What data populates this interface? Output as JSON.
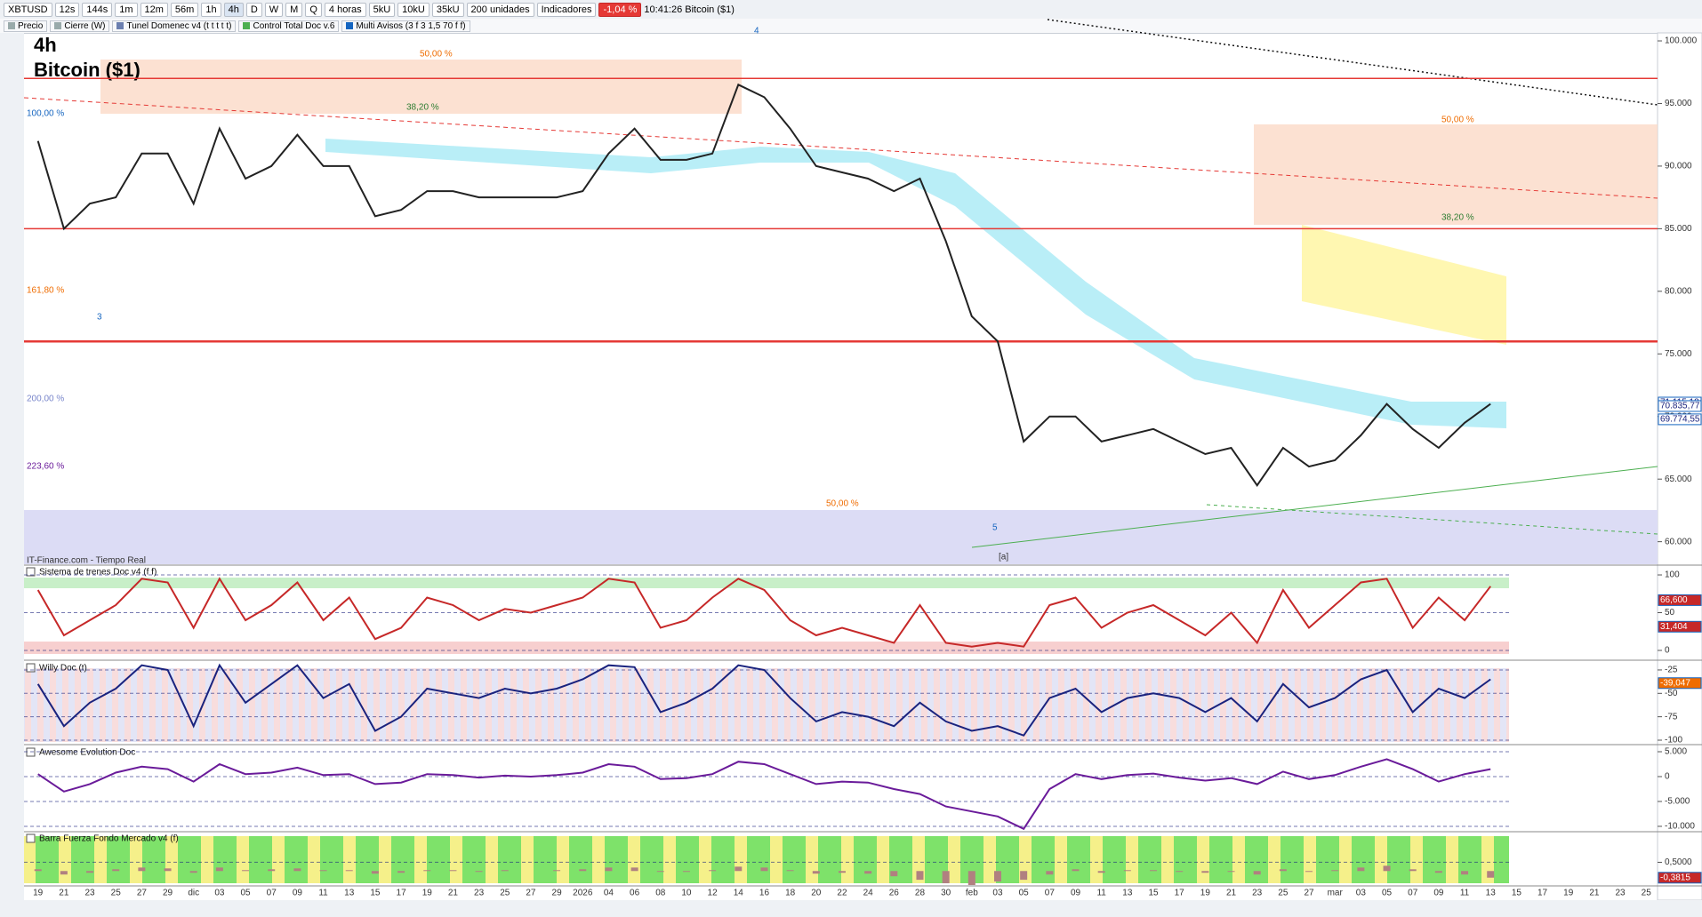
{
  "toolbar": {
    "symbol": "XBTUSD",
    "intervals": [
      "12s",
      "144s",
      "1m",
      "12m",
      "56m",
      "1h",
      "4h",
      "D",
      "W",
      "M",
      "Q"
    ],
    "period": "4 horas",
    "units": [
      "5kU",
      "10kU",
      "35kU"
    ],
    "quantity": "200 unidades",
    "indicators": "Indicadores",
    "change": "-1,04 %",
    "time": "10:41:26",
    "instrument": "Bitcoin ($1)"
  },
  "legend_bar": [
    "Precio",
    "Cierre (W)",
    "Tunel Domenec v4 (t t t t t)",
    "Control Total Doc v.6",
    "Multi Avisos (3 f 3 1,5 70 f f)"
  ],
  "annotations": [
    "50,00 %",
    "38,20 %",
    "100,00 %",
    "161,80 %",
    "200,00 %",
    "223,60 %",
    "50,00 %",
    "50,00 %",
    "38,20 %",
    "4",
    "3",
    "5",
    "[a]"
  ],
  "chart_data": [
    {
      "type": "line",
      "period_label": "4h",
      "title": "Bitcoin ($1)",
      "source": "IT-Finance.com - Tiempo Real",
      "color": "#222222",
      "categories": [
        "19",
        "21",
        "23",
        "25",
        "27",
        "29",
        "dic",
        "03",
        "05",
        "07",
        "09",
        "11",
        "13",
        "15",
        "17",
        "19",
        "21",
        "23",
        "25",
        "27",
        "29",
        "2026",
        "04",
        "06",
        "08",
        "10",
        "12",
        "14",
        "16",
        "18",
        "20",
        "22",
        "24",
        "26",
        "28",
        "30",
        "feb",
        "03",
        "05",
        "07",
        "09",
        "11",
        "13",
        "15",
        "17",
        "19",
        "21",
        "23",
        "25",
        "27",
        "mar",
        "03",
        "05",
        "07",
        "09",
        "11",
        "13",
        "15",
        "17",
        "19",
        "21",
        "23",
        "25"
      ],
      "values": [
        92000,
        85000,
        87000,
        87500,
        91000,
        91000,
        87000,
        93000,
        89000,
        90000,
        92500,
        90000,
        90000,
        86000,
        86500,
        88000,
        88000,
        87500,
        87500,
        87500,
        87500,
        88000,
        91000,
        93000,
        90500,
        90500,
        91000,
        96500,
        95500,
        93000,
        90000,
        89500,
        89000,
        88000,
        89000,
        84000,
        78000,
        76000,
        68000,
        70000,
        70000,
        68000,
        68500,
        69000,
        68000,
        67000,
        67500,
        64500,
        67500,
        66000,
        66500,
        68500,
        71000,
        69000,
        67500,
        69500,
        71000,
        null,
        null,
        null,
        null,
        null,
        null
      ],
      "ylim": [
        58200,
        100640
      ],
      "yticks": [
        {
          "value": 60000,
          "label": "60.000"
        },
        {
          "value": 65000,
          "label": "65.000"
        },
        {
          "value": 70000,
          "label": "70.000"
        },
        {
          "value": 75000,
          "label": "75.000"
        },
        {
          "value": 80000,
          "label": "80.000"
        },
        {
          "value": 85000,
          "label": "85.000"
        },
        {
          "value": 90000,
          "label": "90.000"
        },
        {
          "value": 95000,
          "label": "95.000"
        },
        {
          "value": 100000,
          "label": "100.000"
        }
      ],
      "levels": [
        97000,
        85000,
        76000
      ],
      "level_color": "#e53935",
      "tags": [
        {
          "value": 71115.18,
          "label": "71.115,18",
          "color": "#ffffff"
        },
        {
          "value": 70835.77,
          "label": "70.835,77",
          "color": "#ffffff"
        },
        {
          "value": 69774.55,
          "label": "69.774,55",
          "color": "#ffffff"
        }
      ]
    },
    {
      "type": "line",
      "title": "Sistema de trenes Doc v4 (f f)",
      "color": "#c62828",
      "values": [
        80,
        20,
        40,
        60,
        95,
        90,
        30,
        95,
        40,
        60,
        90,
        40,
        70,
        15,
        30,
        70,
        60,
        40,
        55,
        50,
        60,
        70,
        95,
        90,
        30,
        40,
        70,
        95,
        80,
        40,
        20,
        30,
        20,
        10,
        60,
        10,
        5,
        10,
        5,
        60,
        70,
        30,
        50,
        60,
        40,
        20,
        50,
        10,
        80,
        30,
        60,
        90,
        95,
        30,
        70,
        40,
        85,
        null,
        null,
        null,
        null,
        null,
        null
      ],
      "ylim": [
        -11.8,
        111.8
      ],
      "yticks": [
        0,
        50,
        100
      ],
      "tags": [
        {
          "value": 66.6,
          "label": "66,600",
          "color": "#c62828"
        },
        {
          "value": 31.404,
          "label": "31,404",
          "color": "#c62828"
        }
      ]
    },
    {
      "type": "line",
      "title": "Willy Doc (t)",
      "color": "#1a237e",
      "values": [
        -40,
        -85,
        -60,
        -45,
        -20,
        -25,
        -85,
        -20,
        -60,
        -40,
        -20,
        -55,
        -40,
        -90,
        -75,
        -45,
        -50,
        -55,
        -45,
        -50,
        -45,
        -35,
        -20,
        -22,
        -70,
        -60,
        -45,
        -20,
        -25,
        -55,
        -80,
        -70,
        -75,
        -85,
        -60,
        -80,
        -90,
        -85,
        -95,
        -55,
        -45,
        -70,
        -55,
        -50,
        -55,
        -70,
        -55,
        -80,
        -40,
        -65,
        -55,
        -35,
        -25,
        -70,
        -45,
        -55,
        -35,
        null,
        null,
        null,
        null,
        null,
        null
      ],
      "ylim": [
        -103.8,
        -16.5
      ],
      "yticks": [
        -100,
        -75,
        -50,
        -25
      ],
      "tags": [
        {
          "value": -39.047,
          "label": "-39,047",
          "color": "#ef6c00"
        }
      ]
    },
    {
      "type": "line",
      "title": "Awesome Evolution Doc",
      "color": "#6a1b9a",
      "values": [
        500,
        -3000,
        -1500,
        800,
        2000,
        1500,
        -1000,
        2500,
        500,
        800,
        1800,
        300,
        500,
        -1500,
        -1200,
        500,
        300,
        -200,
        200,
        0,
        300,
        800,
        2500,
        2000,
        -500,
        -300,
        500,
        3000,
        2500,
        500,
        -1500,
        -1000,
        -1200,
        -2500,
        -3500,
        -6000,
        -7000,
        -8000,
        -10500,
        -2500,
        500,
        -500,
        300,
        600,
        -200,
        -800,
        -300,
        -1500,
        1000,
        -500,
        300,
        2000,
        3500,
        1500,
        -1000,
        500,
        1500,
        null,
        null,
        null,
        null,
        null,
        null
      ],
      "ylim": [
        -10900,
        6070
      ],
      "yticks": [
        {
          "value": -10000,
          "label": "-10.000"
        },
        {
          "value": -5000,
          "label": "-5.000"
        },
        0,
        {
          "value": 5000,
          "label": "5.000"
        }
      ]
    },
    {
      "type": "bar",
      "title": "Barra Fuerza Fondo Mercado v4 (f)",
      "color": "#b08080",
      "values": [
        0.1,
        -0.2,
        -0.1,
        0.1,
        0.2,
        0.15,
        -0.1,
        0.2,
        0.05,
        0.1,
        0.15,
        0.05,
        0.05,
        -0.15,
        -0.1,
        0.05,
        0.05,
        -0.05,
        0.05,
        0,
        0.05,
        0.1,
        0.2,
        0.2,
        -0.05,
        -0.05,
        0.05,
        0.25,
        0.2,
        0.05,
        -0.15,
        -0.1,
        -0.15,
        -0.3,
        -0.5,
        -0.7,
        -0.8,
        -0.6,
        -0.5,
        -0.2,
        0.1,
        -0.1,
        0.05,
        0.05,
        -0.05,
        -0.1,
        -0.05,
        -0.2,
        0.1,
        -0.05,
        0.05,
        0.2,
        0.3,
        0.1,
        -0.1,
        -0.2,
        -0.38,
        null,
        null,
        null,
        null,
        null,
        null
      ],
      "ylim": [
        -0.8,
        2.2
      ],
      "yticks": [
        {
          "value": 0.5,
          "label": "0,5000"
        }
      ],
      "tags": [
        {
          "value": -0.3815,
          "label": "-0,3815",
          "color": "#c62828"
        }
      ]
    }
  ]
}
